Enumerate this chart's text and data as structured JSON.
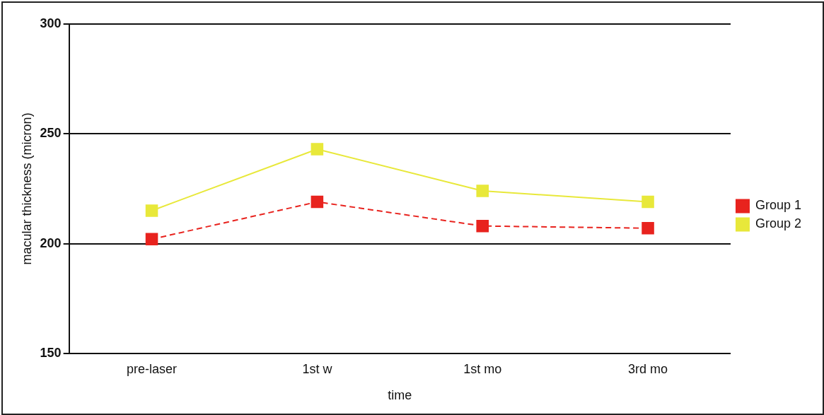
{
  "chart_data": {
    "type": "line",
    "xlabel": "time",
    "ylabel": "macular thickness (micron)",
    "categories": [
      "pre-laser",
      "1st w",
      "1st mo",
      "3rd mo"
    ],
    "series": [
      {
        "name": "Group 1",
        "color": "#e8231e",
        "values": [
          202,
          219,
          208,
          207
        ],
        "line_style": "dashed"
      },
      {
        "name": "Group 2",
        "color": "#e8e83a",
        "values": [
          215,
          243,
          224,
          219
        ],
        "line_style": "solid"
      }
    ],
    "ylim": [
      150,
      300
    ],
    "yticks": [
      150,
      200,
      250,
      300
    ],
    "grid": "y",
    "legend": "right",
    "marker": "square"
  }
}
